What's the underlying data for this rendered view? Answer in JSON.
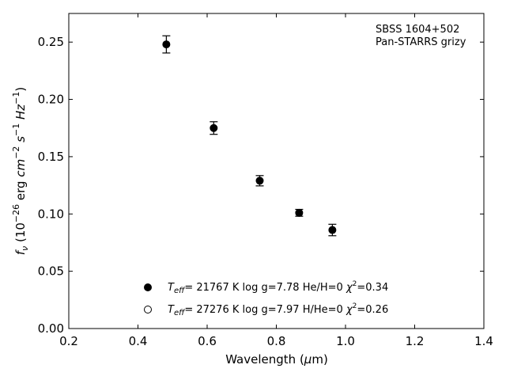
{
  "chart_data": {
    "type": "scatter",
    "xlabel": "Wavelength (μm)",
    "ylabel": "f_ν (10^-26 erg cm^-2 s^-1 Hz^-1)",
    "xlim": [
      0.2,
      1.4
    ],
    "ylim": [
      0.0,
      0.275
    ],
    "x_ticks": [
      0.2,
      0.4,
      0.6,
      0.8,
      1.0,
      1.2,
      1.4
    ],
    "y_ticks": [
      0.0,
      0.05,
      0.1,
      0.15,
      0.2,
      0.25
    ],
    "x_tick_labels": [
      "0.2",
      "0.4",
      "0.6",
      "0.8",
      "1.0",
      "1.2",
      "1.4"
    ],
    "y_tick_labels": [
      "0.00",
      "0.05",
      "0.10",
      "0.15",
      "0.20",
      "0.25"
    ],
    "annotation_lines": [
      "SBSS 1604+502",
      "Pan-STARRS grizy"
    ],
    "legend_position": "lower-center",
    "legend": [
      {
        "marker": "filled-circle",
        "teff": "21767 K",
        "logg": "log g=7.78",
        "abund": "He/H=0",
        "chi2": "=0.34"
      },
      {
        "marker": "open-circle",
        "teff": "27276 K",
        "logg": "log g=7.97",
        "abund": "H/He=0",
        "chi2": "=0.26"
      }
    ],
    "series": [
      {
        "marker": "filled-circle",
        "x": [
          0.482,
          0.619,
          0.752,
          0.866,
          0.962
        ],
        "y": [
          0.248,
          0.175,
          0.129,
          0.101,
          0.086
        ],
        "yerr": [
          0.0075,
          0.0055,
          0.0045,
          0.003,
          0.005
        ]
      }
    ],
    "grid": false
  }
}
